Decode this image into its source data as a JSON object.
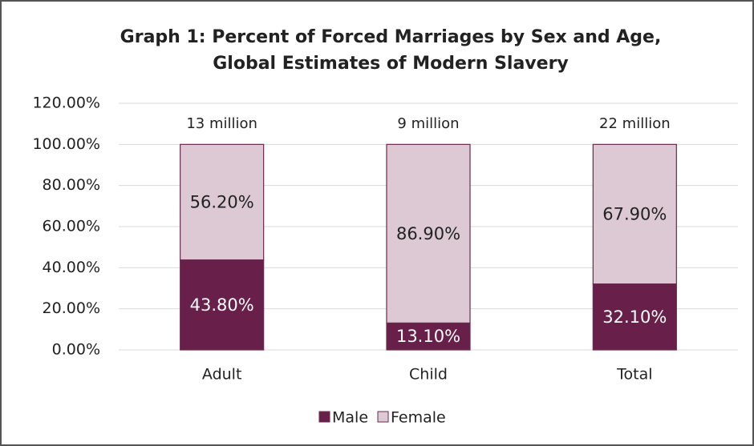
{
  "chart_data": {
    "type": "stacked_bar",
    "title": [
      "Graph 1: Percent of Forced Marriages by Sex and Age,",
      "Global Estimates of Modern Slavery"
    ],
    "categories": [
      "Adult",
      "Child",
      "Total"
    ],
    "annotations": [
      "13 million",
      "9 million",
      "22 million"
    ],
    "series": [
      {
        "name": "Male",
        "color": "#68204a",
        "label_color": "#ffffff",
        "values": [
          43.8,
          13.1,
          32.1
        ],
        "value_labels": [
          "43.80%",
          "13.10%",
          "32.10%"
        ]
      },
      {
        "name": "Female",
        "color": "#dcc9d3",
        "label_color": "#222222",
        "values": [
          56.2,
          86.9,
          67.9
        ],
        "value_labels": [
          "56.20%",
          "86.90%",
          "67.90%"
        ]
      }
    ],
    "ylim": [
      0,
      120
    ],
    "yticks": [
      {
        "value": 0,
        "label": "0.00%"
      },
      {
        "value": 20,
        "label": "20.00%"
      },
      {
        "value": 40,
        "label": "40.00%"
      },
      {
        "value": 60,
        "label": "60.00%"
      },
      {
        "value": 80,
        "label": "80.00%"
      },
      {
        "value": 100,
        "label": "100.00%"
      },
      {
        "value": 120,
        "label": "120.00%"
      }
    ],
    "grid": true,
    "legend": "bottom"
  }
}
